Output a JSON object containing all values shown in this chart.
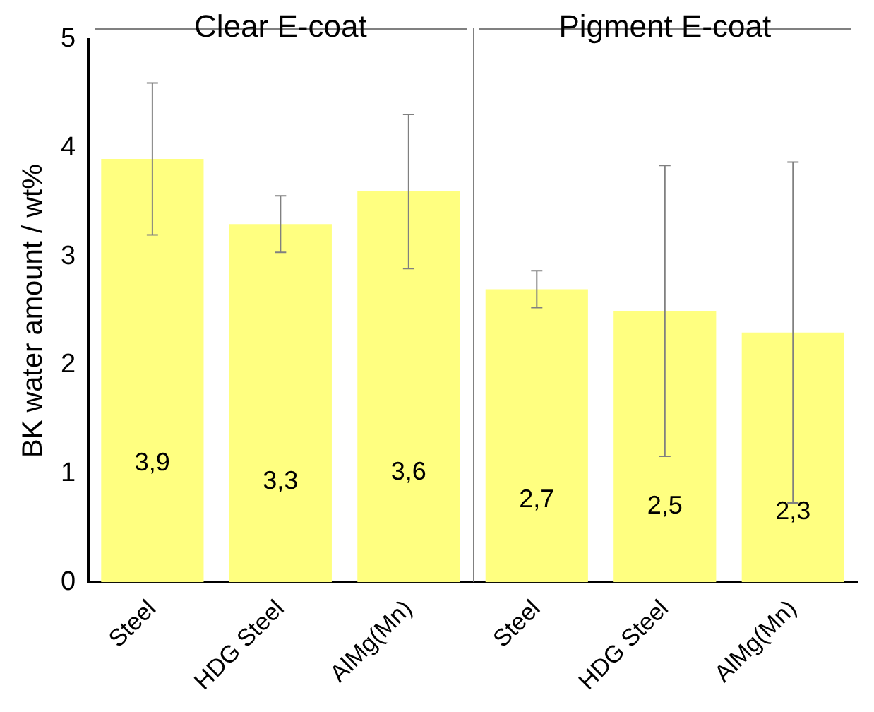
{
  "chart_data": {
    "type": "bar",
    "ylabel": "BK water amount / wt%",
    "categories": [
      "Steel",
      "HDG Steel",
      "AlMg(Mn)",
      "Steel",
      "HDG Steel",
      "AlMg(Mn)"
    ],
    "values": [
      3.9,
      3.3,
      3.6,
      2.7,
      2.5,
      2.3
    ],
    "value_labels": [
      "3,9",
      "3,3",
      "3,6",
      "2,7",
      "2,5",
      "2,3"
    ],
    "errors": [
      0.7,
      0.26,
      0.71,
      0.17,
      1.34,
      1.57
    ],
    "color": "#ffff80",
    "ylim": [
      0,
      5
    ],
    "yticks": [
      0,
      1,
      2,
      3,
      4,
      5
    ],
    "grid": false,
    "legend": false,
    "annotations": [
      "Clear E-coat",
      "Pigment E-coat"
    ]
  }
}
